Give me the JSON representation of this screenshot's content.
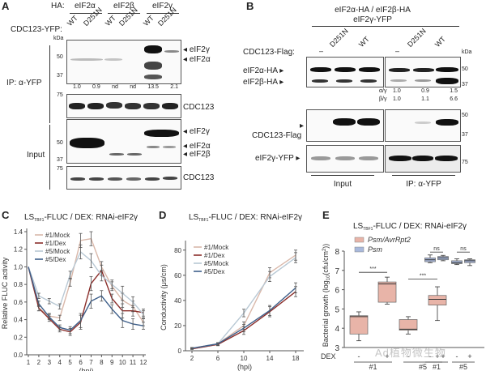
{
  "panels": {
    "A": {
      "label": "A",
      "ha_label": "HA:",
      "ha_groups": [
        "eIF2α",
        "eIF2β",
        "eIF2γ"
      ],
      "cdc_label": "CDC123-YFP:",
      "lanes": [
        "WT",
        "D251N",
        "WT",
        "D251N",
        "WT",
        "D251N"
      ],
      "kda": "kDa",
      "markers_ip": [
        "50",
        "37"
      ],
      "marker_75": "75",
      "ip_label": "IP: α-YFP",
      "input_label": "Input",
      "ip_bands": [
        "eIF2γ",
        "eIF2α"
      ],
      "input_bands": [
        "eIF2γ",
        "eIF2α",
        "eIF2β"
      ],
      "cdc123": "CDC123",
      "quant": [
        "1.0",
        "0.9",
        "nd",
        "nd",
        "13.5",
        "2.1"
      ],
      "input_markers": [
        "50",
        "37"
      ]
    },
    "B": {
      "label": "B",
      "header1": "eIF2α-HA / eIF2β-HA",
      "header2": "eIF2γ-YFP",
      "flag_label": "CDC123-Flag:",
      "lanes": [
        "–",
        "D251N",
        "WT",
        "–",
        "D251N",
        "WT"
      ],
      "kda": "kDa",
      "rows": [
        "eIF2α-HA",
        "eIF2β-HA",
        "CDC123-Flag",
        "eIF2γ-YFP"
      ],
      "markers": [
        "50",
        "37",
        "50",
        "37",
        "75"
      ],
      "ratio_ag_label": "α/γ",
      "ratio_ag": [
        "1.0",
        "0.9",
        "1.5"
      ],
      "ratio_bg_label": "β/γ",
      "ratio_bg": [
        "1.0",
        "1.1",
        "6.6"
      ],
      "input_label": "Input",
      "ip_label": "IP: α-YFP"
    },
    "C": {
      "label": "C"
    },
    "D": {
      "label": "D"
    },
    "E": {
      "label": "E"
    }
  },
  "watermark": "Ad植物微生物",
  "chart_data": [
    {
      "id": "C",
      "type": "line",
      "title": "LSTBF1-FLUC / DEX: RNAi-eIF2γ",
      "title_main": "LS",
      "title_sub": "TBF1",
      "title_rest": "-FLUC / DEX: RNAi-eIF2γ",
      "xlabel": "(hpi)",
      "ylabel": "Relative FLUC activity",
      "x": [
        1,
        2,
        3,
        4,
        5,
        6,
        7,
        8,
        9,
        10,
        11,
        12
      ],
      "xticks": [
        "1",
        "2",
        "3",
        "4",
        "5",
        "6",
        "7",
        "8",
        "9",
        "10",
        "11",
        "12"
      ],
      "ylim": [
        0,
        1.4
      ],
      "yticks": [
        "0.0",
        "0.2",
        "0.4",
        "0.6",
        "0.8",
        "1.0",
        "1.2",
        "1.4"
      ],
      "legend_position": "top-left",
      "series": [
        {
          "name": "#1/Mock",
          "color": "#d9b8aa",
          "values": [
            1.0,
            0.53,
            0.44,
            0.42,
            0.82,
            1.3,
            1.32,
            1.0,
            0.78,
            0.62,
            0.55,
            0.37
          ]
        },
        {
          "name": "#1/Dex",
          "color": "#8b2e2a",
          "values": [
            1.0,
            0.53,
            0.41,
            0.29,
            0.26,
            0.37,
            0.81,
            0.96,
            0.64,
            0.5,
            0.5,
            0.48
          ]
        },
        {
          "name": "#5/Mock",
          "color": "#b8c8d4",
          "values": [
            1.0,
            0.67,
            0.61,
            0.55,
            0.91,
            1.17,
            1.07,
            0.9,
            0.8,
            0.7,
            0.6,
            0.46
          ]
        },
        {
          "name": "#5/Dex",
          "color": "#3e5f8a",
          "values": [
            1.0,
            0.58,
            0.43,
            0.31,
            0.28,
            0.39,
            0.61,
            0.67,
            0.52,
            0.39,
            0.35,
            0.33
          ]
        }
      ],
      "error": [
        0.0,
        0.03,
        0.03,
        0.03,
        0.04,
        0.08,
        0.08,
        0.06,
        0.05,
        0.08,
        0.06,
        0.04
      ]
    },
    {
      "id": "D",
      "type": "line",
      "title": "LSTBF1-FLUC / DEX: RNAi-eIF2γ",
      "title_main": "LS",
      "title_sub": "TBF1",
      "title_rest": "-FLUC / DEX: RNAi-eIF2γ",
      "xlabel": "(hpi)",
      "ylabel": "Conductivity (μs/cm)",
      "x": [
        2,
        6,
        10,
        14,
        18
      ],
      "xticks": [
        "2",
        "6",
        "10",
        "14",
        "18"
      ],
      "ylim": [
        0,
        85
      ],
      "yticks": [
        "0",
        "20",
        "40",
        "60",
        "80"
      ],
      "legend_position": "top-left",
      "series": [
        {
          "name": "#1/Mock",
          "color": "#d9b8aa",
          "values": [
            2,
            5.5,
            20,
            62,
            76
          ]
        },
        {
          "name": "#1/Dex",
          "color": "#8b2e2a",
          "values": [
            1.5,
            5,
            16,
            31,
            47
          ]
        },
        {
          "name": "#5/Mock",
          "color": "#b8c8d4",
          "values": [
            2,
            5.5,
            30,
            59,
            74
          ]
        },
        {
          "name": "#5/Dex",
          "color": "#3e5f8a",
          "values": [
            2,
            5.5,
            18,
            32,
            50
          ]
        }
      ],
      "error": [
        0.5,
        1,
        3,
        4,
        4
      ]
    },
    {
      "id": "E",
      "type": "box",
      "title": "LSTBF1-FLUC / DEX: RNAi-eIF2γ",
      "title_main": "LS",
      "title_sub": "TBF1",
      "title_rest": "-FLUC / DEX: RNAi-eIF2γ",
      "ylabel": "Bacterial growth (log10(cfu/cm²))",
      "ylabel_main": "Bacterial growth (log",
      "ylabel_sub": "10",
      "ylabel_rest": "(cfu/cm",
      "ylabel_sup": "2",
      "ylabel_end": "))",
      "ylim": [
        3,
        8
      ],
      "yticks": [
        "3",
        "4",
        "5",
        "6",
        "7",
        "8"
      ],
      "dex_label": "DEX",
      "dex_signs": [
        "-",
        "+"
      ],
      "line_labels": [
        "#1",
        "#5",
        "#1",
        "#5"
      ],
      "legend_position": "top-left",
      "legend": [
        {
          "name": "Psm/AvrRpt2",
          "color": "#e8b4a8"
        },
        {
          "name": "Psm",
          "color": "#a9b9dc"
        }
      ],
      "significance": [
        "***",
        "***",
        "ns",
        "ns"
      ],
      "boxes": [
        {
          "group": "Psm/AvrRpt2",
          "line": "#1",
          "dex": "-",
          "min": 3.35,
          "q1": 3.7,
          "median": 4.6,
          "q3": 4.65,
          "max": 4.85,
          "color": "#e8b4a8"
        },
        {
          "group": "Psm/AvrRpt2",
          "line": "#1",
          "dex": "+",
          "min": 5.25,
          "q1": 5.35,
          "median": 6.3,
          "q3": 6.4,
          "max": 6.65,
          "color": "#e8b4a8"
        },
        {
          "group": "Psm/AvrRpt2",
          "line": "#5",
          "dex": "-",
          "min": 3.7,
          "q1": 3.9,
          "median": 3.95,
          "q3": 4.45,
          "max": 4.6,
          "color": "#e8b4a8"
        },
        {
          "group": "Psm/AvrRpt2",
          "line": "#5",
          "dex": "+",
          "min": 4.4,
          "q1": 5.2,
          "median": 5.5,
          "q3": 5.7,
          "max": 6.15,
          "color": "#e8b4a8"
        },
        {
          "group": "Psm",
          "line": "#1",
          "dex": "-",
          "min": 7.4,
          "q1": 7.45,
          "median": 7.55,
          "q3": 7.65,
          "max": 7.8,
          "color": "#a9b9dc"
        },
        {
          "group": "Psm",
          "line": "#1",
          "dex": "+",
          "min": 7.5,
          "q1": 7.55,
          "median": 7.65,
          "q3": 7.72,
          "max": 7.78,
          "color": "#a9b9dc"
        },
        {
          "group": "Psm",
          "line": "#5",
          "dex": "-",
          "min": 7.3,
          "q1": 7.35,
          "median": 7.4,
          "q3": 7.5,
          "max": 7.6,
          "color": "#a9b9dc"
        },
        {
          "group": "Psm",
          "line": "#5",
          "dex": "+",
          "min": 7.25,
          "q1": 7.4,
          "median": 7.5,
          "q3": 7.55,
          "max": 7.6,
          "color": "#a9b9dc"
        }
      ]
    }
  ]
}
